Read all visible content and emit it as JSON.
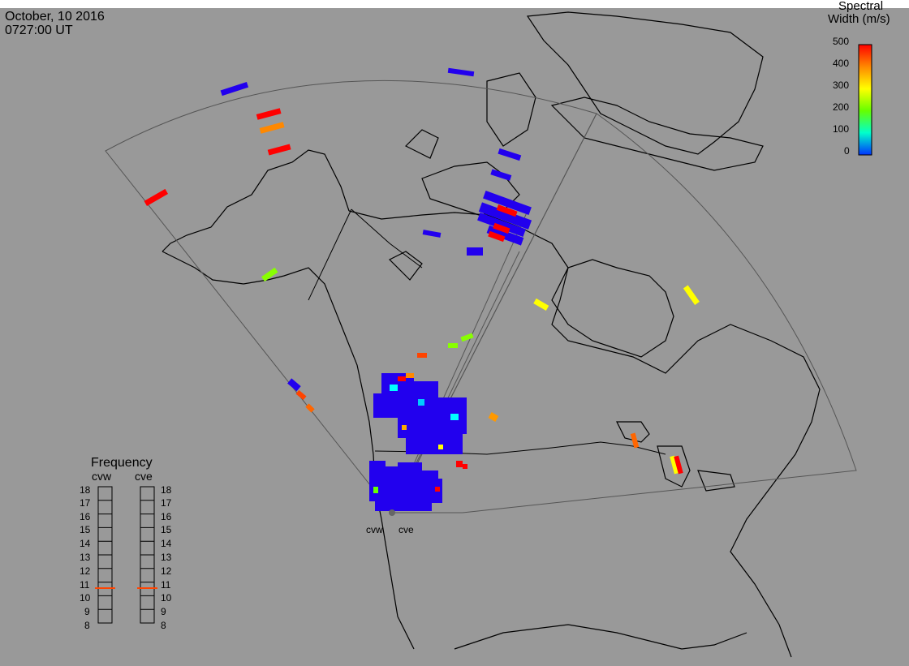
{
  "header": {
    "date": "October, 10 2016",
    "time": "0727:00 UT"
  },
  "colorbar": {
    "title_line1": "Spectral",
    "title_line2": "Width (m/s)",
    "ticks": [
      "500",
      "400",
      "300",
      "200",
      "100",
      "0"
    ],
    "colors": [
      "#ff0000",
      "#ff8800",
      "#ffff00",
      "#66ff00",
      "#00ffcc",
      "#0033ff"
    ]
  },
  "frequency": {
    "title": "Frequency",
    "radars": [
      "cvw",
      "cve"
    ],
    "scale": [
      "18",
      "17",
      "16",
      "15",
      "14",
      "13",
      "12",
      "11",
      "10",
      "9",
      "8"
    ],
    "marker_color": "#ff4400"
  },
  "radar_sites": [
    "cvw",
    "cve"
  ],
  "colors": {
    "background": "#999999",
    "coastline": "#000000",
    "fov_outline": "#555555"
  }
}
